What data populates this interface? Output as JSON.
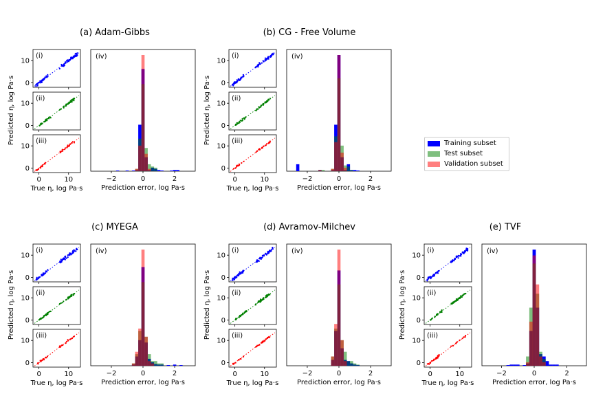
{
  "chart_data": [
    {
      "title": "(a) Adam-Gibbs",
      "type": "scatter+histogram",
      "panels": [
        "(i)",
        "(ii)",
        "(iii)",
        "(iv)"
      ],
      "scatter_xlabel": "True η, log Pa·s",
      "scatter_ylabel": "Predicted η, log Pa·s",
      "hist_xlabel": "Prediction error, log Pa·s",
      "scatter_xticks": [
        "0",
        "10"
      ],
      "scatter_yticks": [
        "0",
        "10"
      ],
      "hist_xticks": [
        "−2",
        "0",
        "2"
      ],
      "hist_xlim": [
        -3.3,
        3.3
      ],
      "hist_bin_centers": [
        -2.6,
        -2.4,
        -2.2,
        -1.8,
        -1.6,
        -1.2,
        -1.0,
        -0.6,
        -0.4,
        -0.2,
        0.0,
        0.2,
        0.4,
        0.6,
        0.8,
        1.0,
        1.2,
        1.4,
        1.6,
        1.8,
        2.0,
        2.2,
        2.4
      ],
      "hist_train": [
        0.0,
        0.0,
        0.0,
        0.0,
        0.005,
        0.0,
        0.005,
        0.005,
        0.01,
        0.4,
        0.88,
        0.12,
        0.01,
        0.03,
        0.02,
        0.01,
        0.005,
        0.0,
        0.0,
        0.005,
        0.01,
        0.01,
        0.0
      ],
      "hist_test": [
        0.0,
        0.0,
        0.0,
        0.0,
        0.0,
        0.0,
        0.0,
        0.0,
        0.02,
        0.28,
        0.75,
        0.2,
        0.06,
        0.04,
        0.03,
        0.0,
        0.0,
        0.0,
        0.0,
        0.0,
        0.0,
        0.0,
        0.0
      ],
      "hist_val": [
        0.0,
        0.0,
        0.0,
        0.0,
        0.0,
        0.0,
        0.0,
        0.0,
        0.02,
        0.22,
        1.0,
        0.15,
        0.02,
        0.0,
        0.0,
        0.0,
        0.0,
        0.0,
        0.0,
        0.0,
        0.0,
        0.0,
        0.0
      ]
    },
    {
      "title": "(b) CG - Free Volume",
      "type": "scatter+histogram",
      "panels": [
        "(i)",
        "(ii)",
        "(iii)",
        "(iv)"
      ],
      "scatter_xlabel": "True η, log Pa·s",
      "scatter_ylabel": "Predicted η, log Pa·s",
      "hist_xlabel": "Prediction error, log Pa·s",
      "scatter_xticks": [
        "0",
        "10"
      ],
      "scatter_yticks": [
        "0",
        "10"
      ],
      "hist_xticks": [
        "−2",
        "0",
        "2"
      ],
      "hist_xlim": [
        -3.3,
        3.3
      ],
      "hist_bin_centers": [
        -2.6,
        -2.4,
        -2.2,
        -1.8,
        -1.6,
        -1.2,
        -1.0,
        -0.6,
        -0.4,
        -0.2,
        0.0,
        0.2,
        0.4,
        0.6,
        0.8,
        1.0,
        1.2,
        1.4,
        1.6,
        1.8,
        2.0,
        2.2,
        2.4
      ],
      "hist_train": [
        0.06,
        0.0,
        0.0,
        0.0,
        0.0,
        0.01,
        0.0,
        0.0,
        0.01,
        0.4,
        1.0,
        0.12,
        0.01,
        0.06,
        0.01,
        0.01,
        0.005,
        0.0,
        0.0,
        0.0,
        0.0,
        0.0,
        0.0
      ],
      "hist_test": [
        0.0,
        0.0,
        0.0,
        0.0,
        0.0,
        0.01,
        0.01,
        0.0,
        0.02,
        0.3,
        0.8,
        0.22,
        0.05,
        0.04,
        0.01,
        0.0,
        0.0,
        0.0,
        0.0,
        0.0,
        0.0,
        0.0,
        0.0
      ],
      "hist_val": [
        0.0,
        0.0,
        0.0,
        0.0,
        0.0,
        0.01,
        0.0,
        0.0,
        0.02,
        0.25,
        1.0,
        0.16,
        0.03,
        0.0,
        0.0,
        0.0,
        0.0,
        0.0,
        0.0,
        0.0,
        0.0,
        0.0,
        0.0
      ]
    },
    {
      "title": "(c) MYEGA",
      "type": "scatter+histogram",
      "panels": [
        "(i)",
        "(ii)",
        "(iii)",
        "(iv)"
      ],
      "scatter_xlabel": "True η, log Pa·s",
      "scatter_ylabel": "Predicted η, log Pa·s",
      "hist_xlabel": "Prediction error, log Pa·s",
      "scatter_xticks": [
        "0",
        "10"
      ],
      "scatter_yticks": [
        "0",
        "10"
      ],
      "hist_xticks": [
        "−2",
        "0",
        "2"
      ],
      "hist_xlim": [
        -3.3,
        3.3
      ],
      "hist_bin_centers": [
        -2.6,
        -2.4,
        -2.2,
        -1.8,
        -1.6,
        -1.2,
        -1.0,
        -0.6,
        -0.4,
        -0.2,
        0.0,
        0.2,
        0.4,
        0.6,
        0.8,
        1.0,
        1.2,
        1.4,
        1.6,
        1.8,
        2.0,
        2.2,
        2.4
      ],
      "hist_train": [
        0.0,
        0.0,
        0.0,
        0.0,
        0.0,
        0.0,
        0.0,
        0.01,
        0.08,
        0.22,
        0.85,
        0.2,
        0.06,
        0.03,
        0.015,
        0.01,
        0.01,
        0.0,
        0.005,
        0.0,
        0.01,
        0.0,
        0.005
      ],
      "hist_test": [
        0.0,
        0.0,
        0.0,
        0.0,
        0.0,
        0.0,
        0.0,
        0.02,
        0.1,
        0.3,
        0.72,
        0.25,
        0.1,
        0.04,
        0.04,
        0.02,
        0.02,
        0.0,
        0.0,
        0.0,
        0.0,
        0.0,
        0.0
      ],
      "hist_val": [
        0.0,
        0.0,
        0.0,
        0.0,
        0.0,
        0.0,
        0.0,
        0.02,
        0.12,
        0.32,
        1.0,
        0.25,
        0.04,
        0.02,
        0.0,
        0.0,
        0.0,
        0.0,
        0.0,
        0.0,
        0.0,
        0.0,
        0.0
      ]
    },
    {
      "title": "(d) Avramov-Milchev",
      "type": "scatter+histogram",
      "panels": [
        "(i)",
        "(ii)",
        "(iii)",
        "(iv)"
      ],
      "scatter_xlabel": "True η, log Pa·s",
      "scatter_ylabel": "Predicted η, log Pa·s",
      "hist_xlabel": "Prediction error, log Pa·s",
      "scatter_xticks": [
        "0",
        "10"
      ],
      "scatter_yticks": [
        "0",
        "10"
      ],
      "hist_xticks": [
        "−2",
        "0",
        "2"
      ],
      "hist_xlim": [
        -3.3,
        3.3
      ],
      "hist_bin_centers": [
        -2.6,
        -2.4,
        -2.2,
        -1.8,
        -1.6,
        -1.2,
        -1.0,
        -0.6,
        -0.4,
        -0.2,
        0.0,
        0.2,
        0.4,
        0.6,
        0.8,
        1.0,
        1.2,
        1.4,
        1.6,
        1.8,
        2.0,
        2.2,
        2.4
      ],
      "hist_train": [
        0.0,
        0.0,
        0.0,
        0.0,
        0.0,
        0.0,
        0.0,
        0.0,
        0.05,
        0.3,
        0.82,
        0.15,
        0.05,
        0.04,
        0.02,
        0.01,
        0.005,
        0.0,
        0.0,
        0.0,
        0.0,
        0.0,
        0.0
      ],
      "hist_test": [
        0.0,
        0.0,
        0.0,
        0.0,
        0.0,
        0.0,
        0.0,
        0.0,
        0.08,
        0.32,
        0.7,
        0.22,
        0.12,
        0.04,
        0.04,
        0.02,
        0.01,
        0.0,
        0.0,
        0.0,
        0.0,
        0.0,
        0.0
      ],
      "hist_val": [
        0.0,
        0.0,
        0.0,
        0.0,
        0.0,
        0.0,
        0.0,
        0.0,
        0.08,
        0.36,
        1.0,
        0.22,
        0.04,
        0.0,
        0.0,
        0.0,
        0.0,
        0.0,
        0.0,
        0.0,
        0.0,
        0.0,
        0.0
      ]
    },
    {
      "title": "(e) TVF",
      "type": "scatter+histogram",
      "panels": [
        "(i)",
        "(ii)",
        "(iii)",
        "(iv)"
      ],
      "scatter_xlabel": "True η, log Pa·s",
      "scatter_ylabel": "Predicted η, log Pa·s",
      "hist_xlabel": "Prediction error, log Pa·s",
      "scatter_xticks": [
        "0",
        "10"
      ],
      "scatter_yticks": [
        "0",
        "10"
      ],
      "hist_xticks": [
        "−2",
        "0",
        "2"
      ],
      "hist_xlim": [
        -3.2,
        3.2
      ],
      "hist_bin_centers": [
        -2.6,
        -2.4,
        -2.2,
        -1.8,
        -1.6,
        -1.4,
        -1.2,
        -1.0,
        -0.8,
        -0.6,
        -0.4,
        -0.2,
        0.0,
        0.2,
        0.4,
        0.6,
        0.8,
        1.0,
        1.2,
        1.4,
        1.6,
        1.8,
        2.0
      ],
      "hist_train": [
        0.0,
        0.0,
        0.0,
        0.0,
        0.005,
        0.01,
        0.01,
        0.01,
        0.0,
        0.005,
        0.02,
        0.3,
        1.0,
        0.5,
        0.1,
        0.08,
        0.04,
        0.01,
        0.01,
        0.01,
        0.0,
        0.0,
        0.0
      ],
      "hist_test": [
        0.0,
        0.0,
        0.0,
        0.0,
        0.0,
        0.0,
        0.0,
        0.0,
        0.0,
        0.0,
        0.08,
        0.5,
        0.88,
        0.62,
        0.12,
        0.06,
        0.0,
        0.0,
        0.0,
        0.0,
        0.0,
        0.0,
        0.0
      ],
      "hist_val": [
        0.0,
        0.0,
        0.0,
        0.0,
        0.0,
        0.0,
        0.0,
        0.0,
        0.0,
        0.0,
        0.03,
        0.38,
        0.95,
        0.7,
        0.08,
        0.03,
        0.0,
        0.0,
        0.0,
        0.0,
        0.0,
        0.0,
        0.0
      ]
    }
  ],
  "legend": {
    "position": "right",
    "entries": [
      {
        "label": "Training subset",
        "color": "#0000ff"
      },
      {
        "label": "Test subset",
        "color": "#008000"
      },
      {
        "label": "Validation subset",
        "color": "#ff0000"
      }
    ]
  },
  "colors": {
    "train": "#0000ff",
    "test": "#008000",
    "val": "#ff0000"
  }
}
